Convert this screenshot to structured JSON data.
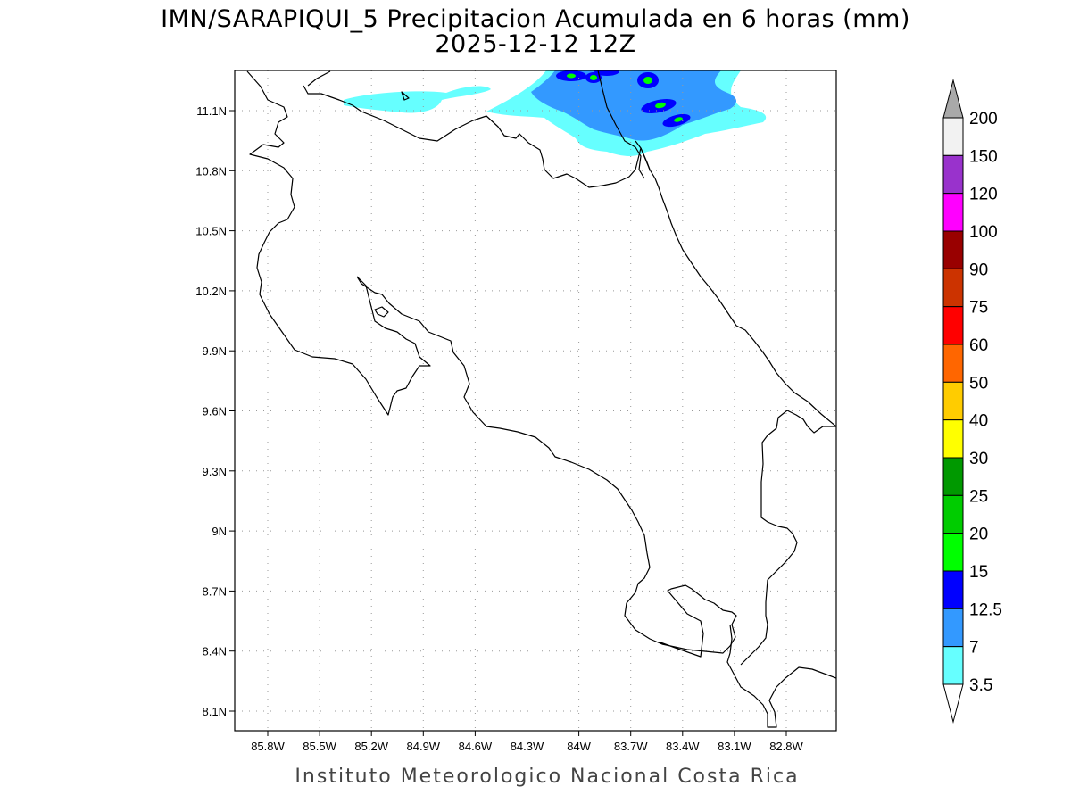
{
  "header": {
    "title": "IMN/SARAPIQUI_5 Precipitacion Acumulada en 6 horas (mm)",
    "subtitle": "2025-12-12 12Z"
  },
  "map": {
    "lat_ticks": [
      "11.1N",
      "10.8N",
      "10.5N",
      "10.2N",
      "9.9N",
      "9.6N",
      "9.3N",
      "9N",
      "8.7N",
      "8.4N",
      "8.1N"
    ],
    "lon_ticks": [
      "85.8W",
      "85.5W",
      "85.2W",
      "84.9W",
      "84.6W",
      "84.3W",
      "84W",
      "83.7W",
      "83.4W",
      "83.1W",
      "82.8W"
    ],
    "grid": true,
    "coastline_color": "#000000"
  },
  "colorbar": {
    "labels": [
      "200",
      "150",
      "120",
      "100",
      "90",
      "75",
      "60",
      "50",
      "40",
      "30",
      "25",
      "20",
      "15",
      "12.5",
      "7",
      "3.5"
    ],
    "colors": [
      "#f2f2f2",
      "#9932cc",
      "#ff00ff",
      "#990000",
      "#cc3300",
      "#ff0000",
      "#ff6600",
      "#ffcc00",
      "#ffff00",
      "#009900",
      "#00cc00",
      "#00ff00",
      "#0000ff",
      "#3399ff",
      "#66ffff"
    ],
    "top_arrow_color": "#a9a9a9",
    "bottom_arrow_color": "#ffffff"
  },
  "footer": {
    "credit": "Instituto Meteorologico Nacional Costa Rica"
  }
}
